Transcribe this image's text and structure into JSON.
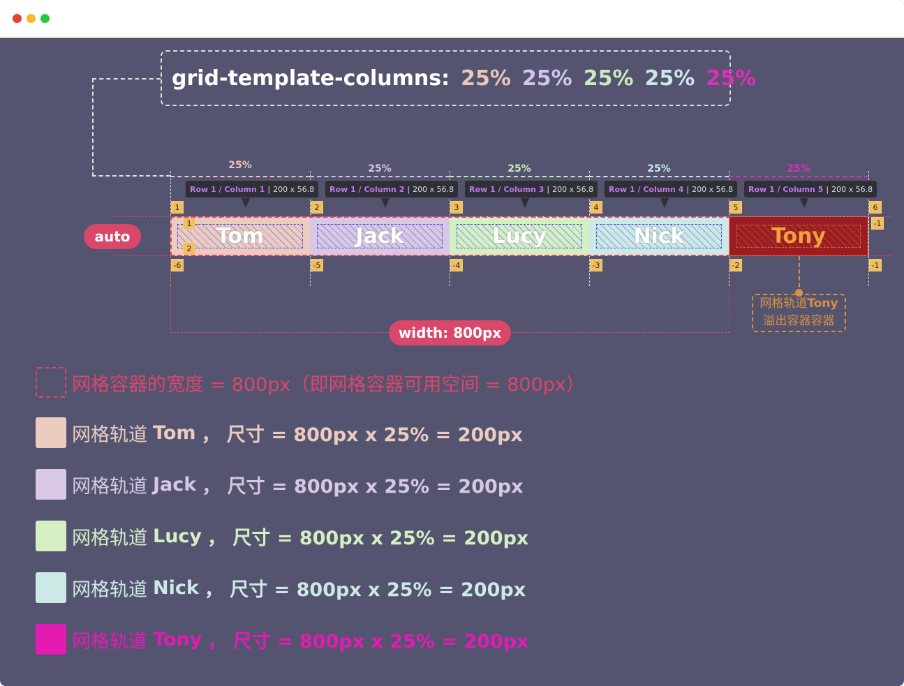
{
  "window": {
    "controls": [
      "close",
      "minimize",
      "maximize"
    ],
    "colors": [
      "#e0443a",
      "#f5b82e",
      "#2ac840"
    ]
  },
  "code": {
    "property": "grid-template-columns:",
    "values": [
      "25%",
      "25%",
      "25%",
      "25%",
      "25%"
    ],
    "colors": [
      "#eac7b9",
      "#d4c3ee",
      "#c9ecbd",
      "#cbe7ea",
      "#e22db8"
    ]
  },
  "row_label": "auto",
  "columns": [
    {
      "name": "Tom",
      "percent": "25%",
      "tip_label": "Row 1 / Column 1",
      "tip_size": "200 x 56.8",
      "color": "#eccbc0",
      "pct_color": "#eac7b9"
    },
    {
      "name": "Jack",
      "percent": "25%",
      "tip_label": "Row 1 / Column 2",
      "tip_size": "200 x 56.8",
      "color": "#d8c8e3",
      "pct_color": "#d4c3ee"
    },
    {
      "name": "Lucy",
      "percent": "25%",
      "tip_label": "Row 1 / Column 3",
      "tip_size": "200 x 56.8",
      "color": "#d5efc4",
      "pct_color": "#c9ecbd"
    },
    {
      "name": "Nick",
      "percent": "25%",
      "tip_label": "Row 1 / Column 4",
      "tip_size": "200 x 56.8",
      "color": "#cde9e5",
      "pct_color": "#cbe7ea"
    },
    {
      "name": "Tony",
      "percent": "25%",
      "tip_label": "Row 1 / Column 5",
      "tip_size": "200 x 56.8",
      "color": "#9b1c22",
      "pct_color": "#e22db8"
    }
  ],
  "line_numbers_top": [
    "1",
    "2",
    "3",
    "4",
    "5",
    "6"
  ],
  "line_numbers_bottom": [
    "-6",
    "-5",
    "-4",
    "-3",
    "-2",
    "-1"
  ],
  "row_numbers": [
    "1",
    "2"
  ],
  "row_numbers_right": [
    "-1"
  ],
  "width_badge": "width: 800px",
  "overflow_note": {
    "line1_prefix": "网格轨道",
    "line1_name": "Tony",
    "line2": "溢出容器容器"
  },
  "legend": [
    {
      "text": "网格容器的宽度 = 800px（即网格容器可用空间 = 800px）",
      "color": "#d9476b"
    },
    {
      "prefix": "网格轨道 ",
      "name": "Tom",
      "suffix": "， 尺寸 = 800px x 25% = 200px",
      "color": "#eccbc0"
    },
    {
      "prefix": "网格轨道 ",
      "name": "Jack",
      "suffix": "， 尺寸 =  800px x 25% = 200px",
      "color": "#d8c8e3"
    },
    {
      "prefix": "网格轨道 ",
      "name": "Lucy",
      "suffix": "， 尺寸 =  800px x 25% = 200px",
      "color": "#d5efc4"
    },
    {
      "prefix": "网格轨道 ",
      "name": "Nick",
      "suffix": "， 尺寸 =  800px x 25% = 200px",
      "color": "#cde9e5"
    },
    {
      "prefix": "网格轨道 ",
      "name": "Tony",
      "suffix": "， 尺寸 =  800px x 25% = 200px",
      "color": "#e31bb2"
    }
  ]
}
